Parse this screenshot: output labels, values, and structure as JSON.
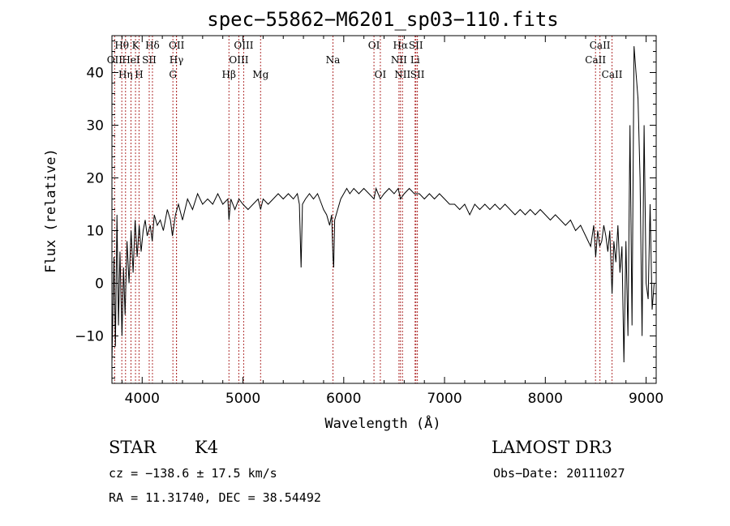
{
  "chart_data": {
    "type": "line",
    "title": "spec−55862−M6201_sp03−110.fits",
    "xlabel": "Wavelength (Å)",
    "ylabel": "Flux (relative)",
    "xlim": [
      3700,
      9100
    ],
    "ylim": [
      -19,
      47
    ],
    "x_ticks": [
      4000,
      5000,
      6000,
      7000,
      8000,
      9000
    ],
    "y_ticks": [
      -10,
      0,
      10,
      20,
      30,
      40
    ],
    "y_tick_labels": [
      "−10",
      "0",
      "10",
      "20",
      "30",
      "40"
    ],
    "grid": false,
    "series": [
      {
        "name": "flux",
        "points": [
          [
            3700,
            -15
          ],
          [
            3720,
            5
          ],
          [
            3735,
            -12
          ],
          [
            3750,
            13
          ],
          [
            3765,
            -8
          ],
          [
            3780,
            6
          ],
          [
            3800,
            -10
          ],
          [
            3815,
            3
          ],
          [
            3830,
            -6
          ],
          [
            3850,
            8
          ],
          [
            3870,
            0
          ],
          [
            3890,
            10
          ],
          [
            3910,
            2
          ],
          [
            3930,
            12
          ],
          [
            3950,
            5
          ],
          [
            3970,
            11
          ],
          [
            3990,
            6
          ],
          [
            4010,
            10
          ],
          [
            4030,
            12
          ],
          [
            4050,
            9
          ],
          [
            4080,
            11
          ],
          [
            4100,
            8
          ],
          [
            4120,
            13
          ],
          [
            4150,
            11
          ],
          [
            4180,
            12
          ],
          [
            4210,
            10
          ],
          [
            4250,
            14
          ],
          [
            4280,
            12
          ],
          [
            4300,
            9
          ],
          [
            4330,
            13
          ],
          [
            4360,
            15
          ],
          [
            4400,
            12
          ],
          [
            4450,
            16
          ],
          [
            4500,
            14
          ],
          [
            4550,
            17
          ],
          [
            4600,
            15
          ],
          [
            4650,
            16
          ],
          [
            4700,
            15
          ],
          [
            4750,
            17
          ],
          [
            4800,
            15
          ],
          [
            4850,
            16
          ],
          [
            4861,
            12
          ],
          [
            4880,
            16
          ],
          [
            4920,
            14
          ],
          [
            4960,
            16
          ],
          [
            5000,
            15
          ],
          [
            5050,
            14
          ],
          [
            5100,
            15
          ],
          [
            5150,
            16
          ],
          [
            5175,
            14
          ],
          [
            5200,
            16
          ],
          [
            5250,
            15
          ],
          [
            5300,
            16
          ],
          [
            5350,
            17
          ],
          [
            5400,
            16
          ],
          [
            5450,
            17
          ],
          [
            5500,
            16
          ],
          [
            5540,
            17
          ],
          [
            5560,
            15
          ],
          [
            5577,
            3
          ],
          [
            5590,
            15
          ],
          [
            5620,
            16
          ],
          [
            5660,
            17
          ],
          [
            5700,
            16
          ],
          [
            5740,
            17
          ],
          [
            5780,
            15
          ],
          [
            5800,
            14
          ],
          [
            5830,
            13
          ],
          [
            5860,
            11
          ],
          [
            5880,
            13
          ],
          [
            5893,
            5
          ],
          [
            5900,
            3
          ],
          [
            5910,
            12
          ],
          [
            5940,
            14
          ],
          [
            5970,
            16
          ],
          [
            6000,
            17
          ],
          [
            6030,
            18
          ],
          [
            6060,
            17
          ],
          [
            6100,
            18
          ],
          [
            6150,
            17
          ],
          [
            6200,
            18
          ],
          [
            6250,
            17
          ],
          [
            6300,
            16
          ],
          [
            6320,
            18
          ],
          [
            6363,
            16
          ],
          [
            6400,
            17
          ],
          [
            6450,
            18
          ],
          [
            6500,
            17
          ],
          [
            6540,
            18
          ],
          [
            6563,
            16
          ],
          [
            6600,
            17
          ],
          [
            6650,
            18
          ],
          [
            6700,
            17
          ],
          [
            6750,
            17
          ],
          [
            6800,
            16
          ],
          [
            6850,
            17
          ],
          [
            6900,
            16
          ],
          [
            6950,
            17
          ],
          [
            7000,
            16
          ],
          [
            7050,
            15
          ],
          [
            7100,
            15
          ],
          [
            7150,
            14
          ],
          [
            7200,
            15
          ],
          [
            7250,
            13
          ],
          [
            7300,
            15
          ],
          [
            7350,
            14
          ],
          [
            7400,
            15
          ],
          [
            7450,
            14
          ],
          [
            7500,
            15
          ],
          [
            7550,
            14
          ],
          [
            7600,
            15
          ],
          [
            7650,
            14
          ],
          [
            7700,
            13
          ],
          [
            7750,
            14
          ],
          [
            7800,
            13
          ],
          [
            7850,
            14
          ],
          [
            7900,
            13
          ],
          [
            7950,
            14
          ],
          [
            8000,
            13
          ],
          [
            8050,
            12
          ],
          [
            8100,
            13
          ],
          [
            8150,
            12
          ],
          [
            8200,
            11
          ],
          [
            8250,
            12
          ],
          [
            8300,
            10
          ],
          [
            8350,
            11
          ],
          [
            8400,
            9
          ],
          [
            8450,
            7
          ],
          [
            8480,
            11
          ],
          [
            8500,
            5
          ],
          [
            8520,
            10
          ],
          [
            8540,
            7
          ],
          [
            8560,
            8
          ],
          [
            8580,
            11
          ],
          [
            8600,
            9
          ],
          [
            8620,
            6
          ],
          [
            8640,
            10
          ],
          [
            8662,
            -2
          ],
          [
            8680,
            8
          ],
          [
            8700,
            4
          ],
          [
            8720,
            11
          ],
          [
            8740,
            2
          ],
          [
            8760,
            7
          ],
          [
            8780,
            -15
          ],
          [
            8800,
            8
          ],
          [
            8820,
            -10
          ],
          [
            8840,
            30
          ],
          [
            8860,
            -8
          ],
          [
            8880,
            45
          ],
          [
            8900,
            40
          ],
          [
            8920,
            35
          ],
          [
            8940,
            20
          ],
          [
            8960,
            -10
          ],
          [
            8980,
            30
          ],
          [
            9000,
            0
          ],
          [
            9020,
            -3
          ],
          [
            9040,
            15
          ],
          [
            9060,
            -5
          ],
          [
            9080,
            0
          ]
        ]
      }
    ],
    "spectral_lines": [
      {
        "label": "Hθ",
        "wavelength": 3798,
        "row": 0
      },
      {
        "label": "K",
        "wavelength": 3934,
        "row": 0
      },
      {
        "label": "Hδ",
        "wavelength": 4102,
        "row": 0
      },
      {
        "label": "OII",
        "wavelength": 4341,
        "row": 0
      },
      {
        "label": "OIII",
        "wavelength": 5007,
        "row": 0
      },
      {
        "label": "OI",
        "wavelength": 6300,
        "row": 0
      },
      {
        "label": "Hα",
        "wavelength": 6563,
        "row": 0
      },
      {
        "label": "SII",
        "wavelength": 6716,
        "row": 0
      },
      {
        "label": "CaII",
        "wavelength": 8542,
        "row": 0
      },
      {
        "label": "OII",
        "wavelength": 3727,
        "row": 1
      },
      {
        "label": "HeI",
        "wavelength": 3889,
        "row": 1
      },
      {
        "label": "SII",
        "wavelength": 4070,
        "row": 1
      },
      {
        "label": "Hγ",
        "wavelength": 4340,
        "row": 1
      },
      {
        "label": "OIII",
        "wavelength": 4959,
        "row": 1
      },
      {
        "label": "Na",
        "wavelength": 5893,
        "row": 1
      },
      {
        "label": "NII",
        "wavelength": 6548,
        "row": 1
      },
      {
        "label": "Li",
        "wavelength": 6708,
        "row": 1
      },
      {
        "label": "CaII",
        "wavelength": 8498,
        "row": 1
      },
      {
        "label": "Hη",
        "wavelength": 3835,
        "row": 2
      },
      {
        "label": "H",
        "wavelength": 3969,
        "row": 2
      },
      {
        "label": "G",
        "wavelength": 4305,
        "row": 2
      },
      {
        "label": "Hβ",
        "wavelength": 4861,
        "row": 2
      },
      {
        "label": "Mg",
        "wavelength": 5175,
        "row": 2
      },
      {
        "label": "OI",
        "wavelength": 6363,
        "row": 2
      },
      {
        "label": "NII",
        "wavelength": 6583,
        "row": 2
      },
      {
        "label": "SII",
        "wavelength": 6731,
        "row": 2
      },
      {
        "label": "CaII",
        "wavelength": 8662,
        "row": 2
      }
    ]
  },
  "footer": {
    "object_type": "STAR",
    "subclass": "K4",
    "survey": "LAMOST DR3",
    "redshift_text": "cz = −138.6 ± 17.5 km/s",
    "obs_date_text": "Obs−Date: 20111027",
    "coords_text": "RA =  11.31740, DEC =  38.54492"
  }
}
